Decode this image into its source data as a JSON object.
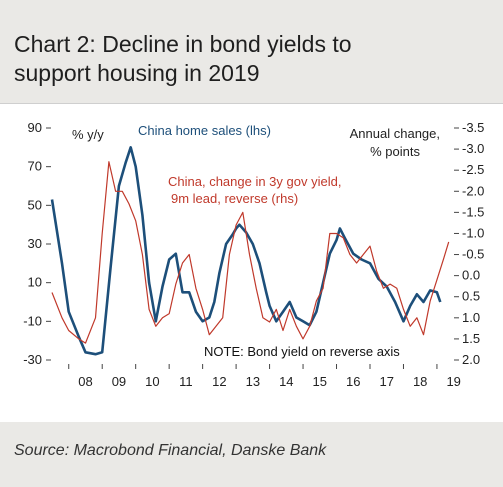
{
  "title_line1": "Chart 2: Decline in bond yields to",
  "title_line2": "support housing in 2019",
  "source": "Source: Macrobond Financial, Danske Bank",
  "colors": {
    "home_sales": "#1d4f7a",
    "bond_yield": "#c0392b",
    "background": "#eae9e6"
  },
  "chart_data": {
    "type": "line",
    "left_axis_label": "% y/y",
    "right_axis_label_line1": "Annual change,",
    "right_axis_label_line2": "% points",
    "note": "NOTE: Bond yield on reverse axis",
    "ylim_left": [
      -30,
      90
    ],
    "ylim_right": [
      2.0,
      -3.5
    ],
    "right_axis_reversed": true,
    "left_ticks": [
      "90",
      "70",
      "50",
      "30",
      "10",
      "-10",
      "-30"
    ],
    "right_ticks": [
      "-3.5",
      "-3.0",
      "-2.5",
      "-2.0",
      "-1.5",
      "-1.0",
      "-0.5",
      "0.0",
      "0.5",
      "1.0",
      "1.5",
      "2.0"
    ],
    "x_ticks": [
      "08",
      "09",
      "10",
      "11",
      "12",
      "13",
      "14",
      "15",
      "16",
      "17",
      "18",
      "19"
    ],
    "series": [
      {
        "name": "China home sales (lhs)",
        "axis": "left",
        "x": [
          2007.5,
          2007.8,
          2008.0,
          2008.3,
          2008.5,
          2008.8,
          2009.0,
          2009.25,
          2009.5,
          2009.7,
          2009.85,
          2010.0,
          2010.2,
          2010.4,
          2010.6,
          2010.8,
          2011.0,
          2011.2,
          2011.4,
          2011.6,
          2011.8,
          2012.0,
          2012.2,
          2012.35,
          2012.5,
          2012.7,
          2012.9,
          2013.0,
          2013.1,
          2013.3,
          2013.5,
          2013.7,
          2013.9,
          2014.0,
          2014.2,
          2014.4,
          2014.6,
          2014.8,
          2015.0,
          2015.2,
          2015.4,
          2015.6,
          2015.8,
          2016.0,
          2016.1,
          2016.25,
          2016.5,
          2016.75,
          2017.0,
          2017.25,
          2017.5,
          2017.75,
          2018.0,
          2018.2,
          2018.4,
          2018.6,
          2018.8,
          2019.0,
          2019.1
        ],
        "values": [
          53,
          20,
          -5,
          -18,
          -26,
          -27,
          -26,
          18,
          60,
          72,
          80,
          70,
          45,
          10,
          -10,
          8,
          22,
          25,
          5,
          5,
          -5,
          -10,
          -8,
          0,
          15,
          30,
          35,
          38,
          40,
          36,
          30,
          20,
          5,
          -2,
          -10,
          -5,
          0,
          -8,
          -10,
          -12,
          -5,
          10,
          25,
          32,
          38,
          33,
          25,
          22,
          20,
          12,
          8,
          0,
          -10,
          -2,
          4,
          0,
          6,
          5,
          0
        ]
      },
      {
        "name": "China, change in 3y gov yield, 9m lead, reverse (rhs)",
        "axis": "right",
        "x": [
          2007.5,
          2007.8,
          2008.0,
          2008.3,
          2008.5,
          2008.8,
          2009.0,
          2009.2,
          2009.4,
          2009.6,
          2009.8,
          2010.0,
          2010.2,
          2010.4,
          2010.6,
          2010.8,
          2011.0,
          2011.2,
          2011.4,
          2011.6,
          2011.8,
          2012.0,
          2012.2,
          2012.4,
          2012.6,
          2012.8,
          2013.0,
          2013.2,
          2013.4,
          2013.6,
          2013.8,
          2014.0,
          2014.2,
          2014.4,
          2014.6,
          2014.8,
          2015.0,
          2015.2,
          2015.4,
          2015.6,
          2015.8,
          2016.0,
          2016.2,
          2016.4,
          2016.6,
          2016.8,
          2017.0,
          2017.2,
          2017.4,
          2017.6,
          2017.8,
          2018.0,
          2018.2,
          2018.4,
          2018.6,
          2018.8,
          2019.0,
          2019.2,
          2019.35
        ],
        "values": [
          0.4,
          1.0,
          1.3,
          1.5,
          1.6,
          1.0,
          -1.0,
          -2.7,
          -2.0,
          -2.0,
          -1.7,
          -1.3,
          -0.5,
          0.8,
          1.2,
          1.0,
          0.9,
          0.2,
          -0.3,
          -0.5,
          0.3,
          0.8,
          1.4,
          1.2,
          1.0,
          -0.5,
          -1.2,
          -1.5,
          -0.5,
          0.3,
          1.0,
          1.1,
          0.8,
          1.3,
          0.8,
          1.2,
          1.5,
          1.2,
          0.6,
          0.3,
          -1.0,
          -1.0,
          -0.9,
          -0.5,
          -0.3,
          -0.5,
          -0.7,
          -0.1,
          0.3,
          0.2,
          0.3,
          0.8,
          1.2,
          1.0,
          1.4,
          0.6,
          0.1,
          -0.4,
          -0.8
        ]
      }
    ]
  }
}
